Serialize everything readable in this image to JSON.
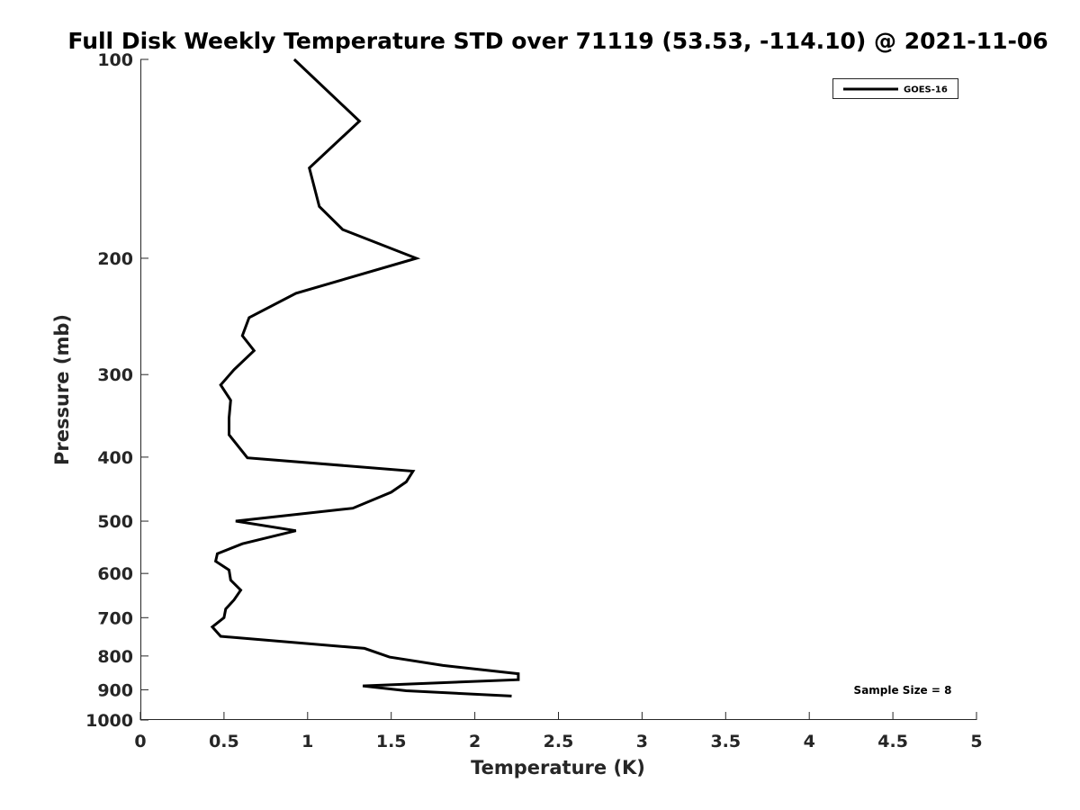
{
  "chart_data": {
    "type": "line",
    "title": "Full Disk Weekly Temperature STD over 71119 (53.53, -114.10) @ 2021-11-06",
    "xlabel": "Temperature (K)",
    "ylabel": "Pressure (mb)",
    "xlim": [
      0,
      5
    ],
    "ylim": [
      100,
      1000
    ],
    "yscale": "log",
    "y_reversed": true,
    "xticks": [
      0,
      0.5,
      1,
      1.5,
      2,
      2.5,
      3,
      3.5,
      4,
      4.5,
      5
    ],
    "xtick_labels": [
      "0",
      "0.5",
      "1",
      "1.5",
      "2",
      "2.5",
      "3",
      "3.5",
      "4",
      "4.5",
      "5"
    ],
    "yticks": [
      100,
      200,
      300,
      400,
      500,
      600,
      700,
      800,
      900,
      1000
    ],
    "ytick_labels": [
      "100",
      "200",
      "300",
      "400",
      "500",
      "600",
      "700",
      "800",
      "900",
      "1000"
    ],
    "grid": false,
    "legend_position": "top-right",
    "series": [
      {
        "name": "GOES-16",
        "color": "#000000",
        "x": [
          0.92,
          1.31,
          1.01,
          1.07,
          1.21,
          1.65,
          0.93,
          0.65,
          0.61,
          0.68,
          0.56,
          0.48,
          0.54,
          0.53,
          0.53,
          0.64,
          1.63,
          1.59,
          1.5,
          1.27,
          0.57,
          0.93,
          0.61,
          0.46,
          0.45,
          0.53,
          0.54,
          0.6,
          0.56,
          0.51,
          0.5,
          0.43,
          0.48,
          1.34,
          1.49,
          1.81,
          2.26,
          2.26,
          1.33,
          1.59,
          2.22
        ],
        "y": [
          100,
          124,
          146,
          167,
          181,
          200,
          226,
          246,
          262,
          276,
          295,
          311,
          328,
          349,
          370,
          401,
          420,
          436,
          452,
          478,
          500,
          517,
          541,
          560,
          575,
          593,
          614,
          636,
          658,
          679,
          700,
          723,
          747,
          779,
          803,
          827,
          851,
          869,
          888,
          903,
          920
        ]
      }
    ],
    "annotations": [
      "Sample Size = 8"
    ]
  }
}
